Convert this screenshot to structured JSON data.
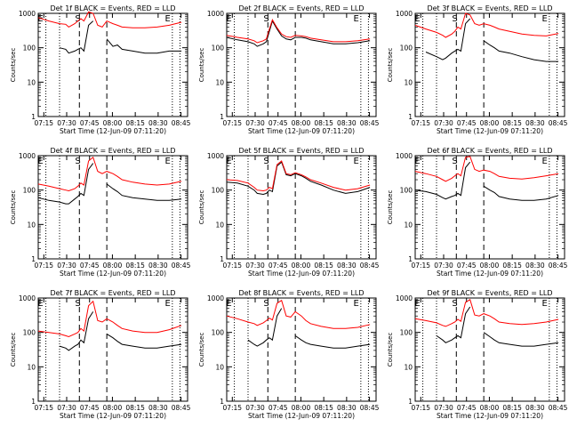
{
  "figure": {
    "start_time_label": "Start Time (12-Jun-09 07:11:20)",
    "y_axis_label": "Counts/sec",
    "x_ticks": [
      "07:15",
      "07:30",
      "07:45",
      "08:00",
      "08:15",
      "08:30",
      "08:45"
    ],
    "y_ticks": [
      "1",
      "10",
      "100",
      "1000"
    ],
    "flag_labels": [
      "E",
      "S",
      "E"
    ]
  },
  "chart_data": [
    {
      "type": "line",
      "title": "Det 1f BLACK = Events, RED = LLD",
      "ylabel": "Counts/sec",
      "xlabel": "Start Time (12-Jun-09 07:11:20)",
      "yscale": "log",
      "ylim": [
        1,
        1000
      ],
      "x_ticks": [
        "07:15",
        "07:30",
        "07:45",
        "08:00",
        "08:15",
        "08:30",
        "08:45"
      ],
      "x": [
        0,
        7,
        14,
        18,
        20,
        24,
        26,
        28,
        30,
        33,
        36,
        39,
        42,
        45,
        49,
        52,
        55,
        62,
        70,
        78,
        86,
        94
      ],
      "series": [
        {
          "name": "BLACK = Events",
          "color": "#000000",
          "values": [
            null,
            null,
            100,
            90,
            70,
            80,
            90,
            100,
            80,
            450,
            600,
            null,
            null,
            180,
            110,
            120,
            90,
            80,
            70,
            70,
            80,
            80
          ]
        },
        {
          "name": "RED = LLD",
          "color": "#ff0000",
          "values": [
            750,
            600,
            500,
            480,
            400,
            500,
            600,
            700,
            600,
            1100,
            1000,
            450,
            400,
            600,
            500,
            450,
            400,
            380,
            380,
            400,
            450,
            550
          ]
        }
      ]
    },
    {
      "type": "line",
      "title": "Det 2f BLACK = Events, RED = LLD",
      "ylabel": "Counts/sec",
      "xlabel": "Start Time (12-Jun-09 07:11:20)",
      "yscale": "log",
      "ylim": [
        1,
        1000
      ],
      "x_ticks": [
        "07:15",
        "07:30",
        "07:45",
        "08:00",
        "08:15",
        "08:30",
        "08:45"
      ],
      "x": [
        0,
        7,
        14,
        18,
        20,
        24,
        26,
        28,
        30,
        33,
        36,
        39,
        42,
        45,
        49,
        52,
        55,
        62,
        70,
        78,
        86,
        94
      ],
      "series": [
        {
          "name": "BLACK = Events",
          "color": "#000000",
          "values": [
            200,
            170,
            150,
            130,
            110,
            130,
            150,
            300,
            600,
            350,
            220,
            180,
            170,
            200,
            200,
            190,
            170,
            150,
            130,
            130,
            140,
            160
          ]
        },
        {
          "name": "RED = LLD",
          "color": "#ff0000",
          "values": [
            230,
            200,
            180,
            160,
            140,
            160,
            180,
            350,
            650,
            380,
            250,
            210,
            200,
            230,
            220,
            210,
            190,
            170,
            150,
            150,
            160,
            180
          ]
        }
      ]
    },
    {
      "type": "line",
      "title": "Det 3f BLACK = Events, RED = LLD",
      "ylabel": "Counts/sec",
      "xlabel": "Start Time (12-Jun-09 07:11:20)",
      "yscale": "log",
      "ylim": [
        1,
        1000
      ],
      "x_ticks": [
        "07:15",
        "07:30",
        "07:45",
        "08:00",
        "08:15",
        "08:30",
        "08:45"
      ],
      "x": [
        0,
        7,
        14,
        18,
        20,
        24,
        26,
        28,
        30,
        33,
        36,
        39,
        42,
        45,
        49,
        52,
        55,
        62,
        70,
        78,
        86,
        94
      ],
      "series": [
        {
          "name": "BLACK = Events",
          "color": "#000000",
          "values": [
            null,
            75,
            55,
            45,
            50,
            70,
            80,
            90,
            80,
            500,
            700,
            null,
            null,
            160,
            120,
            100,
            80,
            70,
            55,
            45,
            40,
            40
          ]
        },
        {
          "name": "RED = LLD",
          "color": "#ff0000",
          "values": [
            450,
            350,
            280,
            230,
            200,
            250,
            300,
            400,
            350,
            1000,
            900,
            500,
            450,
            500,
            450,
            400,
            350,
            300,
            250,
            230,
            220,
            260
          ]
        }
      ]
    },
    {
      "type": "line",
      "title": "Det 4f BLACK = Events, RED = LLD",
      "ylabel": "Counts/sec",
      "xlabel": "Start Time (12-Jun-09 07:11:20)",
      "yscale": "log",
      "ylim": [
        1,
        1000
      ],
      "x_ticks": [
        "07:15",
        "07:30",
        "07:45",
        "08:00",
        "08:15",
        "08:30",
        "08:45"
      ],
      "x": [
        0,
        7,
        14,
        18,
        20,
        24,
        26,
        28,
        30,
        33,
        36,
        39,
        42,
        45,
        49,
        52,
        55,
        62,
        70,
        78,
        86,
        94
      ],
      "series": [
        {
          "name": "BLACK = Events",
          "color": "#000000",
          "values": [
            60,
            50,
            45,
            40,
            40,
            55,
            65,
            80,
            70,
            400,
            600,
            null,
            null,
            150,
            110,
            90,
            70,
            60,
            55,
            50,
            50,
            55
          ]
        },
        {
          "name": "RED = LLD",
          "color": "#ff0000",
          "values": [
            150,
            130,
            110,
            100,
            95,
            110,
            130,
            160,
            140,
            700,
            900,
            350,
            300,
            350,
            300,
            250,
            200,
            170,
            150,
            140,
            150,
            180
          ]
        }
      ]
    },
    {
      "type": "line",
      "title": "Det 5f BLACK = Events, RED = LLD",
      "ylabel": "Counts/sec",
      "xlabel": "Start Time (12-Jun-09 07:11:20)",
      "yscale": "log",
      "ylim": [
        1,
        1000
      ],
      "x_ticks": [
        "07:15",
        "07:30",
        "07:45",
        "08:00",
        "08:15",
        "08:30",
        "08:45"
      ],
      "x": [
        0,
        7,
        14,
        18,
        20,
        24,
        26,
        28,
        30,
        33,
        36,
        39,
        42,
        45,
        49,
        52,
        55,
        62,
        70,
        78,
        86,
        94
      ],
      "series": [
        {
          "name": "BLACK = Events",
          "color": "#000000",
          "values": [
            170,
            160,
            130,
            100,
            80,
            75,
            80,
            100,
            90,
            500,
            650,
            280,
            260,
            300,
            260,
            220,
            180,
            140,
            100,
            80,
            90,
            120
          ]
        },
        {
          "name": "RED = LLD",
          "color": "#ff0000",
          "values": [
            200,
            190,
            160,
            120,
            100,
            95,
            100,
            120,
            110,
            550,
            700,
            300,
            280,
            320,
            280,
            240,
            200,
            160,
            120,
            100,
            110,
            140
          ]
        }
      ]
    },
    {
      "type": "line",
      "title": "Det 6f BLACK = Events, RED = LLD",
      "ylabel": "Counts/sec",
      "xlabel": "Start Time (12-Jun-09 07:11:20)",
      "yscale": "log",
      "ylim": [
        1,
        1000
      ],
      "x_ticks": [
        "07:15",
        "07:30",
        "07:45",
        "08:00",
        "08:15",
        "08:30",
        "08:45"
      ],
      "x": [
        0,
        7,
        14,
        18,
        20,
        24,
        26,
        28,
        30,
        33,
        36,
        39,
        42,
        45,
        49,
        52,
        55,
        62,
        70,
        78,
        86,
        94
      ],
      "series": [
        {
          "name": "BLACK = Events",
          "color": "#000000",
          "values": [
            100,
            90,
            75,
            60,
            55,
            65,
            70,
            80,
            70,
            450,
            650,
            null,
            null,
            130,
            100,
            85,
            65,
            55,
            50,
            50,
            55,
            70
          ]
        },
        {
          "name": "RED = LLD",
          "color": "#ff0000",
          "values": [
            350,
            300,
            250,
            200,
            180,
            220,
            260,
            300,
            260,
            900,
            950,
            400,
            350,
            380,
            350,
            300,
            250,
            220,
            210,
            230,
            260,
            300
          ]
        }
      ]
    },
    {
      "type": "line",
      "title": "Det 7f BLACK = Events, RED = LLD",
      "ylabel": "Counts/sec",
      "xlabel": "Start Time (12-Jun-09 07:11:20)",
      "yscale": "log",
      "ylim": [
        1,
        1000
      ],
      "x_ticks": [
        "07:15",
        "07:30",
        "07:45",
        "08:00",
        "08:15",
        "08:30",
        "08:45"
      ],
      "x": [
        0,
        7,
        14,
        18,
        20,
        24,
        26,
        28,
        30,
        33,
        36,
        39,
        42,
        45,
        49,
        52,
        55,
        62,
        70,
        78,
        86,
        94
      ],
      "series": [
        {
          "name": "BLACK = Events",
          "color": "#000000",
          "values": [
            null,
            null,
            40,
            35,
            30,
            40,
            45,
            60,
            50,
            250,
            400,
            null,
            null,
            90,
            70,
            55,
            45,
            40,
            35,
            35,
            40,
            45
          ]
        },
        {
          "name": "RED = LLD",
          "color": "#ff0000",
          "values": [
            110,
            100,
            90,
            80,
            75,
            90,
            100,
            130,
            110,
            600,
            800,
            220,
            200,
            250,
            200,
            160,
            130,
            110,
            100,
            100,
            120,
            160
          ]
        }
      ]
    },
    {
      "type": "line",
      "title": "Det 8f BLACK = Events, RED = LLD",
      "ylabel": "Counts/sec",
      "xlabel": "Start Time (12-Jun-09 07:11:20)",
      "yscale": "log",
      "ylim": [
        1,
        1000
      ],
      "x_ticks": [
        "07:15",
        "07:30",
        "07:45",
        "08:00",
        "08:15",
        "08:30",
        "08:45"
      ],
      "x": [
        0,
        7,
        14,
        18,
        20,
        24,
        26,
        28,
        30,
        33,
        36,
        39,
        42,
        45,
        49,
        52,
        55,
        62,
        70,
        78,
        86,
        94
      ],
      "series": [
        {
          "name": "BLACK = Events",
          "color": "#000000",
          "values": [
            null,
            null,
            60,
            45,
            40,
            50,
            60,
            70,
            60,
            300,
            500,
            null,
            null,
            80,
            60,
            50,
            45,
            40,
            35,
            35,
            40,
            45
          ]
        },
        {
          "name": "RED = LLD",
          "color": "#ff0000",
          "values": [
            300,
            250,
            200,
            180,
            160,
            190,
            220,
            260,
            230,
            700,
            850,
            300,
            280,
            400,
            300,
            220,
            180,
            150,
            130,
            130,
            140,
            170
          ]
        }
      ]
    },
    {
      "type": "line",
      "title": "Det 9f BLACK = Events, RED = LLD",
      "ylabel": "Counts/sec",
      "xlabel": "Start Time (12-Jun-09 07:11:20)",
      "yscale": "log",
      "ylim": [
        1,
        1000
      ],
      "x_ticks": [
        "07:15",
        "07:30",
        "07:45",
        "08:00",
        "08:15",
        "08:30",
        "08:45"
      ],
      "x": [
        0,
        7,
        14,
        18,
        20,
        24,
        26,
        28,
        30,
        33,
        36,
        39,
        42,
        45,
        49,
        52,
        55,
        62,
        70,
        78,
        86,
        94
      ],
      "series": [
        {
          "name": "BLACK = Events",
          "color": "#000000",
          "values": [
            null,
            null,
            80,
            60,
            50,
            60,
            70,
            80,
            70,
            350,
            550,
            null,
            null,
            100,
            75,
            60,
            50,
            45,
            40,
            40,
            45,
            50
          ]
        },
        {
          "name": "RED = LLD",
          "color": "#ff0000",
          "values": [
            250,
            220,
            190,
            160,
            150,
            180,
            200,
            240,
            210,
            750,
            900,
            320,
            300,
            350,
            300,
            250,
            200,
            180,
            170,
            180,
            200,
            240
          ]
        }
      ]
    }
  ]
}
